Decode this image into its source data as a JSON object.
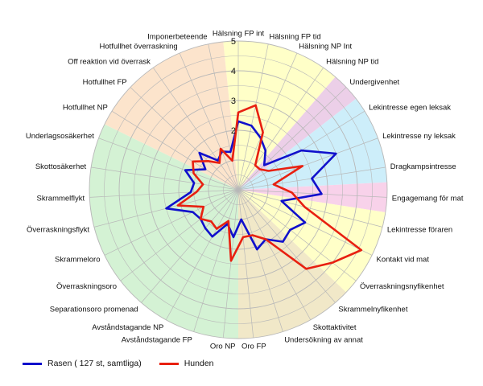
{
  "chart_data": {
    "type": "radar",
    "rmax": 5,
    "ticks": [
      1,
      2,
      3,
      4,
      5
    ],
    "tick_labels": [
      "2",
      "3",
      "4",
      "5"
    ],
    "grid": true,
    "legend_position": "bottom-left",
    "categories": [
      "Hälsning FP int",
      "Hälsning FP tid",
      "Hälsning NP Int",
      "Hälsning NP tid",
      "Undergivenhet",
      "Lekintresse egen leksak",
      "Lekintresse ny leksak",
      "Dragkampsintresse",
      "Engagemang för mat",
      "Lekintresse föraren",
      "Kontakt vid mat",
      "Överraskningsnyfikenhet",
      "Skrammelnyfikenhet",
      "Skottaktivitet",
      "Undersökning av annat",
      "Oro FP",
      "Oro NP",
      "Avståndstagande FP",
      "Avståndstagande NP",
      "Separationsoro promenad",
      "Överraskningsoro",
      "Skrammeloro",
      "Överraskningsflykt",
      "Skrammelflykt",
      "Skottosäkerhet",
      "Underlagsosäkerhet",
      "Hotfullhet NP",
      "Hotfullhet FP",
      "Off reaktion vid överrask",
      "Hotfullhet överraskning",
      "Imponerbeteende"
    ],
    "series": [
      {
        "name": "Rasen ( 127 st, samtliga)",
        "color": "#1010cc",
        "values": [
          2.3,
          2.2,
          1.9,
          1.6,
          1.2,
          2.5,
          3.5,
          2.5,
          2.8,
          1.5,
          2.5,
          2.2,
          2.3,
          1.9,
          2.1,
          1.0,
          1.6,
          1.2,
          1.8,
          1.7,
          1.6,
          1.7,
          2.5,
          1.6,
          1.5,
          1.9,
          1.3,
          1.8,
          1.2,
          1.4,
          1.3
        ]
      },
      {
        "name": "Hunden",
        "color": "#e82010",
        "values": [
          2.6,
          2.9,
          2.1,
          1.0,
          1.0,
          1.2,
          2.3,
          1.2,
          1.8,
          2.3,
          4.6,
          4.0,
          3.5,
          1.9,
          1.6,
          1.6,
          2.4,
          1.1,
          1.5,
          1.4,
          1.6,
          1.3,
          2.1,
          1.4,
          1.2,
          1.6,
          1.8,
          1.4,
          1.1,
          1.5,
          1.0
        ]
      }
    ],
    "sectors": [
      {
        "from": 0,
        "to": 4,
        "color": "#ffffc8"
      },
      {
        "from": 4,
        "to": 5,
        "color": "#eccfe8"
      },
      {
        "from": 5,
        "to": 8,
        "color": "#cdeefa"
      },
      {
        "from": 8,
        "to": 9,
        "color": "#f8d2ea"
      },
      {
        "from": 9,
        "to": 12,
        "color": "#ffffc8"
      },
      {
        "from": 12,
        "to": 16,
        "color": "#f1e8c8"
      },
      {
        "from": 16,
        "to": 26,
        "color": "#d4f2d4"
      },
      {
        "from": 26,
        "to": 31,
        "color": "#fce4cc"
      }
    ]
  }
}
